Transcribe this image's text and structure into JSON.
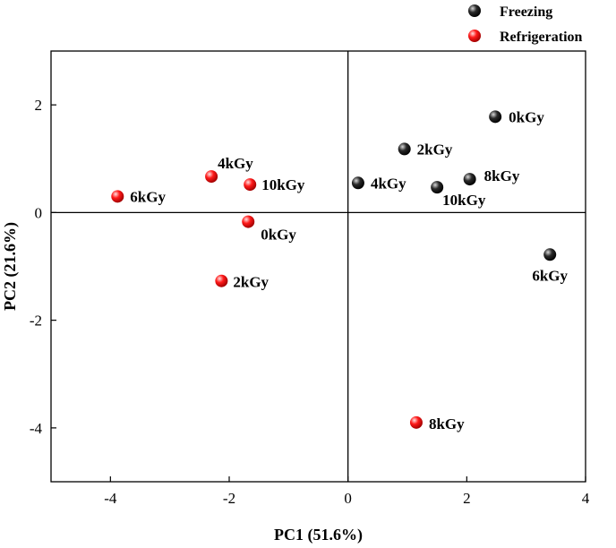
{
  "chart_data": {
    "type": "scatter",
    "title": "",
    "xlabel": "PC1 (51.6%)",
    "ylabel": "PC2 (21.6%)",
    "xlim": [
      -5,
      4
    ],
    "ylim": [
      -5,
      3
    ],
    "xticks": [
      -4,
      -2,
      0,
      2,
      4
    ],
    "yticks": [
      2,
      0,
      -2,
      -4
    ],
    "xtick_labels": [
      "-4",
      "-2",
      "0",
      "2",
      "4"
    ],
    "ytick_labels": [
      "2",
      "0",
      "-2",
      "-4"
    ],
    "reference_lines": {
      "x": 0,
      "y": 0
    },
    "grid": false,
    "legend_position": "top-right",
    "series": [
      {
        "name": "Freezing",
        "color": "#000000",
        "points": [
          {
            "x": 2.48,
            "y": 1.78,
            "label": "0kGy"
          },
          {
            "x": 0.95,
            "y": 1.18,
            "label": "2kGy"
          },
          {
            "x": 0.17,
            "y": 0.55,
            "label": "4kGy"
          },
          {
            "x": 3.4,
            "y": -0.78,
            "label": "6kGy"
          },
          {
            "x": 2.05,
            "y": 0.62,
            "label": "8kGy"
          },
          {
            "x": 1.5,
            "y": 0.47,
            "label": "10kGy"
          }
        ]
      },
      {
        "name": "Refrigeration",
        "color": "#ff0000",
        "points": [
          {
            "x": -1.68,
            "y": -0.17,
            "label": "0kGy"
          },
          {
            "x": -2.13,
            "y": -1.27,
            "label": "2kGy"
          },
          {
            "x": -2.3,
            "y": 0.67,
            "label": "4kGy"
          },
          {
            "x": -3.88,
            "y": 0.3,
            "label": "6kGy"
          },
          {
            "x": 1.15,
            "y": -3.9,
            "label": "8kGy"
          },
          {
            "x": -1.65,
            "y": 0.52,
            "label": "10kGy"
          }
        ]
      }
    ]
  }
}
